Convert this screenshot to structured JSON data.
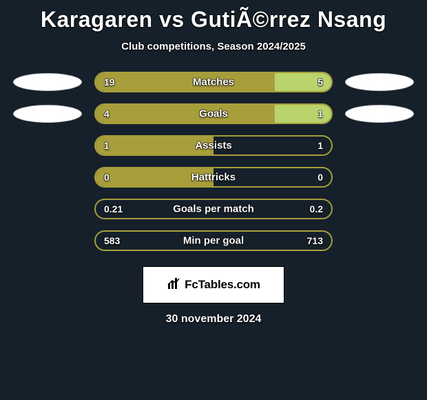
{
  "background_color": "#16202b",
  "title": "Karagaren vs GutiÃ©rrez Nsang",
  "subtitle": "Club competitions, Season 2024/2025",
  "text_color": "#ffffff",
  "accent_left": "#a79e3b",
  "accent_right": "#b9d46d",
  "bar_border_color": "#a79e3b",
  "bar_track_color": "#16202b",
  "ellipse_fill": "#ffffff",
  "ellipse_border": "#c8c8c8",
  "rows": [
    {
      "label": "Matches",
      "left_val": "19",
      "right_val": "5",
      "left_pct": 76,
      "right_pct": 24,
      "show_left_ellipse": true,
      "show_right_ellipse": true
    },
    {
      "label": "Goals",
      "left_val": "4",
      "right_val": "1",
      "left_pct": 76,
      "right_pct": 24,
      "show_left_ellipse": true,
      "show_right_ellipse": true
    },
    {
      "label": "Assists",
      "left_val": "1",
      "right_val": "1",
      "left_pct": 50,
      "right_pct": 0,
      "show_left_ellipse": false,
      "show_right_ellipse": false
    },
    {
      "label": "Hattricks",
      "left_val": "0",
      "right_val": "0",
      "left_pct": 50,
      "right_pct": 0,
      "show_left_ellipse": false,
      "show_right_ellipse": false
    },
    {
      "label": "Goals per match",
      "left_val": "0.21",
      "right_val": "0.2",
      "left_pct": 0,
      "right_pct": 0,
      "show_left_ellipse": false,
      "show_right_ellipse": false
    },
    {
      "label": "Min per goal",
      "left_val": "583",
      "right_val": "713",
      "left_pct": 0,
      "right_pct": 0,
      "show_left_ellipse": false,
      "show_right_ellipse": false
    }
  ],
  "brand": "FcTables.com",
  "date": "30 november 2024"
}
